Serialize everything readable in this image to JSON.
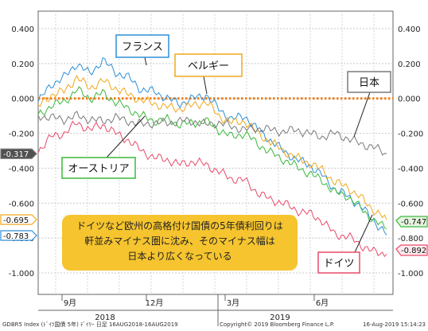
{
  "chart_data": {
    "type": "line",
    "y_ticks": [
      0.4,
      0.2,
      0.0,
      -0.2,
      -0.4,
      -0.6,
      -0.8,
      -1.0
    ],
    "y_tick_labels": [
      "0.400",
      "0.200",
      "0.000",
      "-0.200",
      "-0.400",
      "-0.600",
      "-0.800",
      "-1.000"
    ],
    "ylim": [
      -1.1,
      0.5
    ],
    "x_tick_labels": [
      "9月",
      "12月",
      "3月",
      "6月"
    ],
    "x_year_labels": [
      "2018",
      "2019"
    ],
    "grid": true,
    "zero_line_color": "#f07f1a",
    "series": [
      {
        "key": "france",
        "name": "フランス",
        "color": "#2e8fd8",
        "last": -0.783,
        "badge": "-0.783",
        "values": [
          -0.02,
          0.08,
          0.12,
          0.2,
          0.14,
          0.22,
          0.15,
          0.12,
          0.05,
          0.04,
          0.0,
          -0.03,
          0.0,
          0.02,
          -0.06,
          -0.12,
          -0.1,
          -0.18,
          -0.24,
          -0.3,
          -0.35,
          -0.38,
          -0.44,
          -0.52,
          -0.56,
          -0.62,
          -0.7,
          -0.783
        ]
      },
      {
        "key": "belgium",
        "name": "ベルギー",
        "color": "#f0a81c",
        "last": -0.695,
        "badge": "-0.695",
        "values": [
          -0.05,
          0.02,
          0.04,
          0.12,
          0.06,
          0.1,
          0.06,
          0.02,
          -0.01,
          -0.03,
          -0.05,
          -0.06,
          -0.04,
          -0.02,
          -0.1,
          -0.14,
          -0.13,
          -0.2,
          -0.25,
          -0.3,
          -0.34,
          -0.37,
          -0.41,
          -0.48,
          -0.51,
          -0.57,
          -0.64,
          -0.695
        ]
      },
      {
        "key": "austria",
        "name": "オーストリア",
        "color": "#3cb83c",
        "last": -0.747,
        "badge": "-0.747",
        "values": [
          -0.1,
          -0.04,
          -0.02,
          0.05,
          0.0,
          0.03,
          -0.02,
          -0.06,
          -0.1,
          -0.13,
          -0.12,
          -0.15,
          -0.14,
          -0.13,
          -0.18,
          -0.22,
          -0.2,
          -0.26,
          -0.31,
          -0.35,
          -0.39,
          -0.43,
          -0.47,
          -0.54,
          -0.56,
          -0.63,
          -0.7,
          -0.747
        ]
      },
      {
        "key": "japan",
        "name": "日本",
        "color": "#7a7a7a",
        "last": -0.317,
        "badge": "-0.317",
        "values": [
          -0.1,
          -0.11,
          -0.12,
          -0.1,
          -0.12,
          -0.13,
          -0.11,
          -0.13,
          -0.15,
          -0.14,
          -0.14,
          -0.13,
          -0.13,
          -0.15,
          -0.14,
          -0.16,
          -0.18,
          -0.17,
          -0.18,
          -0.19,
          -0.18,
          -0.2,
          -0.22,
          -0.2,
          -0.23,
          -0.26,
          -0.28,
          -0.317
        ]
      },
      {
        "key": "germany",
        "name": "ドイツ",
        "color": "#e84a6a",
        "last": -0.892,
        "badge": "-0.892",
        "values": [
          -0.3,
          -0.22,
          -0.2,
          -0.14,
          -0.18,
          -0.15,
          -0.2,
          -0.24,
          -0.3,
          -0.34,
          -0.35,
          -0.38,
          -0.36,
          -0.38,
          -0.42,
          -0.46,
          -0.47,
          -0.54,
          -0.58,
          -0.6,
          -0.64,
          -0.66,
          -0.7,
          -0.78,
          -0.79,
          -0.84,
          -0.88,
          -0.892
        ]
      }
    ],
    "annotation": [
      "ドイツなど欧州の高格付け国債の5年債利回りは",
      "軒並みマイナス圏に沈み、そのマイナス幅は",
      "日本より広くなっている"
    ],
    "footer_left": "GDBR5 Index (ﾄﾞｲﾂ国債 5年) ﾃﾞｲﾘｰ  日足 16AUG2018-16AUG2019",
    "footer_mid": "Copyright© 2019 Bloomberg Finance L.P.",
    "footer_right": "16-Aug-2019 15:14:23"
  }
}
